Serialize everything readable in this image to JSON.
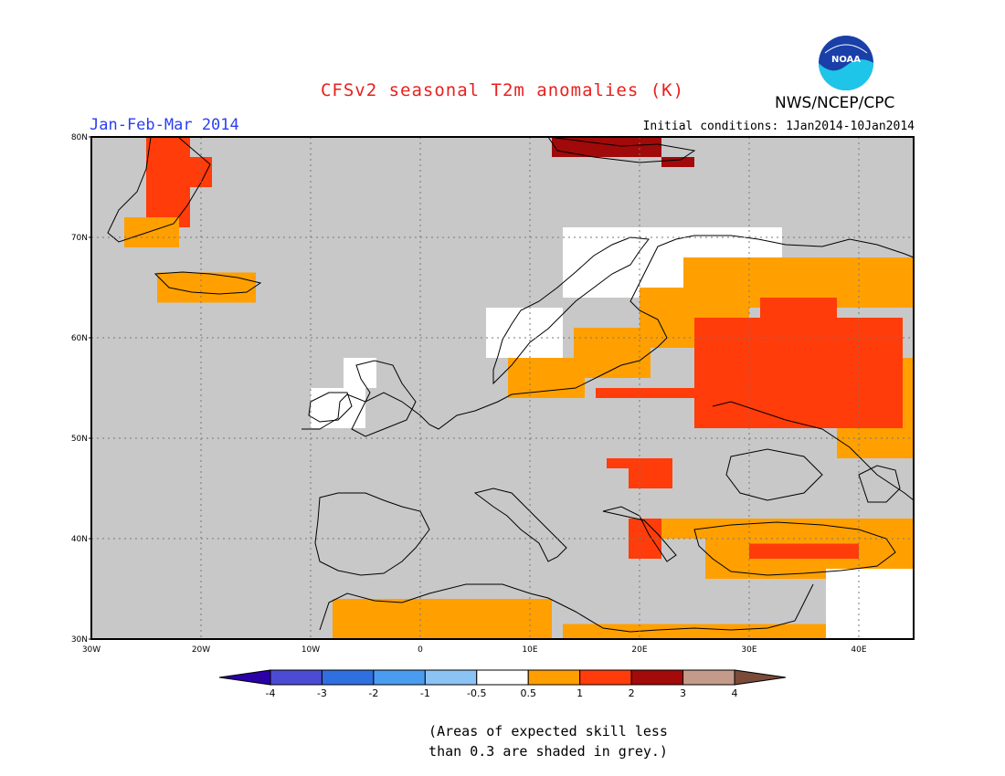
{
  "title": "CFSv2 seasonal T2m anomalies (K)",
  "agency": "NWS/NCEP/CPC",
  "period": "Jan-Feb-Mar 2014",
  "initial_conditions": "Initial conditions: 1Jan2014-10Jan2014",
  "logo_text": "NOAA",
  "axes": {
    "lat_labels": [
      "80N",
      "70N",
      "60N",
      "50N",
      "40N",
      "30N"
    ],
    "lon_labels": [
      "30W",
      "20W",
      "10W",
      "0",
      "10E",
      "20E",
      "30E",
      "40E"
    ],
    "lat_range": [
      30,
      80
    ],
    "lon_range": [
      -30,
      45
    ],
    "grid": true
  },
  "colorbar": {
    "colors": [
      "#2b00a6",
      "#4b4bd4",
      "#2f6fe0",
      "#4a9cf0",
      "#8cc3f5",
      "#ffffff",
      "#ff9e00",
      "#ff3c0a",
      "#a30a0a",
      "#c49a8a",
      "#7a4a3a"
    ],
    "labels": [
      "-4",
      "-3",
      "-2",
      "-1",
      "-0.5",
      "0.5",
      "1",
      "2",
      "3",
      "4"
    ]
  },
  "map_colors": {
    "skill_grey": "#c8c8c8",
    "white": "#ffffff",
    "orange": "#ffa000",
    "red": "#ff3c0a",
    "dark_red": "#a00a0a"
  },
  "footnote": {
    "line1": "(Areas of expected skill less",
    "line2": "than 0.3 are shaded in grey.)"
  },
  "anomaly_regions": [
    {
      "level": "red",
      "lon": [
        -25,
        -21
      ],
      "lat": [
        71,
        80
      ]
    },
    {
      "level": "red",
      "lon": [
        -25,
        -19
      ],
      "lat": [
        75,
        78
      ]
    },
    {
      "level": "orange",
      "lon": [
        -27,
        -22
      ],
      "lat": [
        69,
        72
      ]
    },
    {
      "level": "orange",
      "lon": [
        -24,
        -15
      ],
      "lat": [
        63.5,
        66.5
      ]
    },
    {
      "level": "dark_red",
      "lon": [
        12,
        22
      ],
      "lat": [
        78,
        80
      ]
    },
    {
      "level": "dark_red",
      "lon": [
        22,
        25
      ],
      "lat": [
        77,
        78
      ]
    },
    {
      "level": "white",
      "lon": [
        13,
        33
      ],
      "lat": [
        64,
        71
      ]
    },
    {
      "level": "white",
      "lon": [
        6,
        13
      ],
      "lat": [
        58,
        63
      ]
    },
    {
      "level": "orange",
      "lon": [
        8,
        15
      ],
      "lat": [
        54,
        58
      ]
    },
    {
      "level": "orange",
      "lon": [
        14,
        21
      ],
      "lat": [
        56,
        61
      ]
    },
    {
      "level": "orange",
      "lon": [
        20,
        30
      ],
      "lat": [
        59,
        65
      ]
    },
    {
      "level": "orange",
      "lon": [
        24,
        45
      ],
      "lat": [
        63,
        68
      ]
    },
    {
      "level": "orange",
      "lon": [
        38,
        45
      ],
      "lat": [
        48,
        58
      ]
    },
    {
      "level": "red",
      "lon": [
        25,
        44
      ],
      "lat": [
        51,
        62
      ]
    },
    {
      "level": "red",
      "lon": [
        16,
        26
      ],
      "lat": [
        54,
        55
      ]
    },
    {
      "level": "red",
      "lon": [
        31,
        38
      ],
      "lat": [
        60,
        64
      ]
    },
    {
      "level": "orange",
      "lon": [
        20,
        45
      ],
      "lat": [
        40,
        42
      ]
    },
    {
      "level": "orange",
      "lon": [
        26,
        45
      ],
      "lat": [
        36,
        40
      ]
    },
    {
      "level": "red",
      "lon": [
        30,
        40
      ],
      "lat": [
        38,
        39.5
      ]
    },
    {
      "level": "red",
      "lon": [
        19,
        22
      ],
      "lat": [
        38,
        42
      ]
    },
    {
      "level": "red",
      "lon": [
        19,
        23
      ],
      "lat": [
        45,
        48
      ]
    },
    {
      "level": "red",
      "lon": [
        17,
        19
      ],
      "lat": [
        47,
        48
      ]
    },
    {
      "level": "orange",
      "lon": [
        -8,
        12
      ],
      "lat": [
        30,
        34
      ]
    },
    {
      "level": "orange",
      "lon": [
        13,
        45
      ],
      "lat": [
        30,
        31.5
      ]
    },
    {
      "level": "white",
      "lon": [
        37,
        45
      ],
      "lat": [
        30,
        37
      ]
    },
    {
      "level": "white",
      "lon": [
        -10,
        -5
      ],
      "lat": [
        51,
        55
      ]
    },
    {
      "level": "white",
      "lon": [
        -7,
        -4
      ],
      "lat": [
        55,
        58
      ]
    }
  ]
}
